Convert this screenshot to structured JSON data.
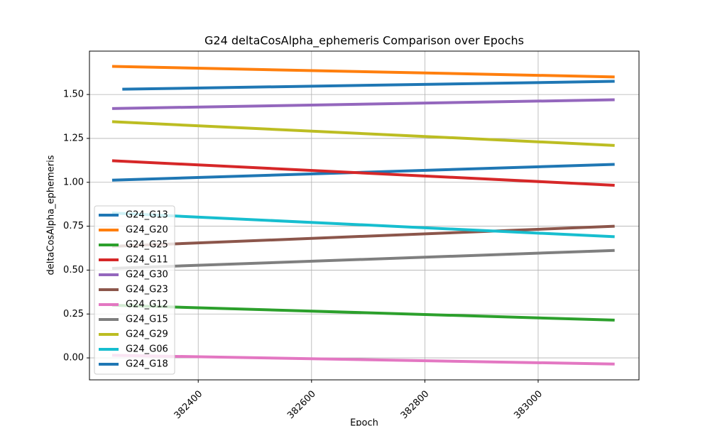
{
  "chart_data": {
    "type": "line",
    "title": "G24 deltaCosAlpha_ephemeris Comparison over Epochs",
    "x_label": "Epoch",
    "y_label": "deltaCosAlpha_ephemeris",
    "xlim": [
      382208,
      383178
    ],
    "xticks": [
      382400,
      382600,
      382800,
      383000
    ],
    "ylim": [
      -0.125,
      1.747
    ],
    "yticks": [
      {
        "value": 0,
        "label": "0.00"
      },
      {
        "value": 0.25,
        "label": "0.25"
      },
      {
        "value": 0.5,
        "label": "0.50"
      },
      {
        "value": 0.75,
        "label": "0.75"
      },
      {
        "value": 1,
        "label": "1.00"
      },
      {
        "value": 1.25,
        "label": "1.25"
      },
      {
        "value": 1.5,
        "label": "1.50"
      }
    ],
    "grid": true,
    "legend": "lower left",
    "series": [
      {
        "name": "G24_G13",
        "color": "#1f77b4",
        "x": [
          382248,
          383135
        ],
        "values": [
          1.012,
          1.102
        ]
      },
      {
        "name": "G24_G20",
        "color": "#ff7f0e",
        "x": [
          382248,
          383135
        ],
        "values": [
          1.66,
          1.6
        ]
      },
      {
        "name": "G24_G25",
        "color": "#2ca02c",
        "x": [
          382248,
          383135
        ],
        "values": [
          0.3,
          0.215
        ]
      },
      {
        "name": "G24_G11",
        "color": "#d62728",
        "x": [
          382248,
          383135
        ],
        "values": [
          1.123,
          0.983
        ]
      },
      {
        "name": "G24_G30",
        "color": "#9467bd",
        "x": [
          382248,
          383135
        ],
        "values": [
          1.42,
          1.47
        ]
      },
      {
        "name": "G24_G23",
        "color": "#8c564b",
        "x": [
          382248,
          383135
        ],
        "values": [
          0.635,
          0.75
        ]
      },
      {
        "name": "G24_G12",
        "color": "#e377c2",
        "x": [
          382248,
          383135
        ],
        "values": [
          0.015,
          -0.035
        ]
      },
      {
        "name": "G24_G15",
        "color": "#7f7f7f",
        "x": [
          382248,
          383135
        ],
        "values": [
          0.51,
          0.612
        ]
      },
      {
        "name": "G24_G29",
        "color": "#bcbd22",
        "x": [
          382248,
          383135
        ],
        "values": [
          1.345,
          1.21
        ]
      },
      {
        "name": "G24_G06",
        "color": "#17becf",
        "x": [
          382248,
          383135
        ],
        "values": [
          0.825,
          0.69
        ]
      },
      {
        "name": "G24_G18",
        "color": "#1f77b4",
        "x": [
          382266,
          383135
        ],
        "values": [
          1.53,
          1.575
        ]
      }
    ]
  }
}
